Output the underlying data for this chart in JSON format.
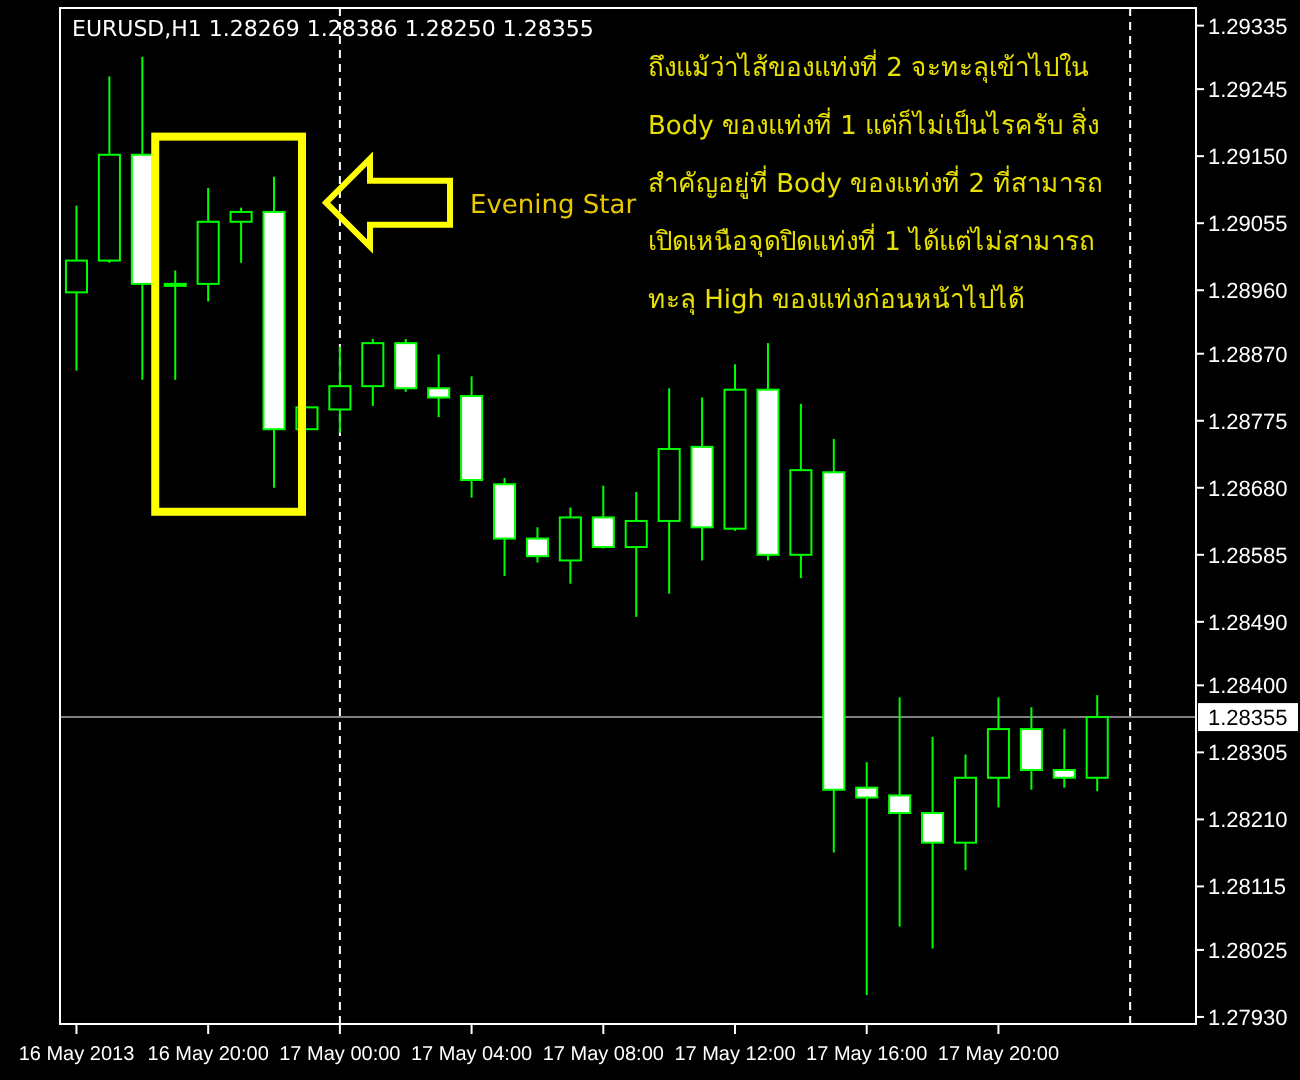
{
  "chart_data": {
    "type": "candlestick",
    "title": "EURUSD,H1 1.28269 1.28386 1.28250 1.28355",
    "x": [
      "2013-05-16T16:00",
      "2013-05-16T17:00",
      "2013-05-16T18:00",
      "2013-05-16T19:00",
      "2013-05-16T20:00",
      "2013-05-16T21:00",
      "2013-05-16T22:00",
      "2013-05-16T23:00",
      "2013-05-17T00:00",
      "2013-05-17T01:00",
      "2013-05-17T02:00",
      "2013-05-17T03:00",
      "2013-05-17T04:00",
      "2013-05-17T05:00",
      "2013-05-17T06:00",
      "2013-05-17T07:00",
      "2013-05-17T08:00",
      "2013-05-17T09:00",
      "2013-05-17T10:00",
      "2013-05-17T11:00",
      "2013-05-17T12:00",
      "2013-05-17T13:00",
      "2013-05-17T14:00",
      "2013-05-17T15:00",
      "2013-05-17T16:00",
      "2013-05-17T17:00",
      "2013-05-17T18:00",
      "2013-05-17T19:00",
      "2013-05-17T20:00",
      "2013-05-17T21:00",
      "2013-05-17T22:00",
      "2013-05-17T23:00"
    ],
    "ohlc": [
      [
        1.28957,
        1.2908,
        1.28846,
        1.29002
      ],
      [
        1.29002,
        1.29263,
        1.28999,
        1.29152
      ],
      [
        1.29152,
        1.29291,
        1.28833,
        1.28969
      ],
      [
        1.28969,
        1.28988,
        1.28833,
        1.28969
      ],
      [
        1.28969,
        1.29105,
        1.28944,
        1.29057
      ],
      [
        1.29057,
        1.29077,
        1.28999,
        1.29071
      ],
      [
        1.29071,
        1.29121,
        1.2868,
        1.28763
      ],
      [
        1.28763,
        1.28794,
        1.28763,
        1.28794
      ],
      [
        1.28791,
        1.2888,
        1.28758,
        1.28824
      ],
      [
        1.28824,
        1.28891,
        1.28796,
        1.28885
      ],
      [
        1.28885,
        1.28891,
        1.28816,
        1.28821
      ],
      [
        1.28821,
        1.28869,
        1.2878,
        1.28808
      ],
      [
        1.2881,
        1.28838,
        1.28666,
        1.28691
      ],
      [
        1.28685,
        1.28694,
        1.28555,
        1.28608
      ],
      [
        1.28608,
        1.28624,
        1.28574,
        1.28583
      ],
      [
        1.28577,
        1.28652,
        1.28544,
        1.28638
      ],
      [
        1.28638,
        1.28683,
        1.28594,
        1.28596
      ],
      [
        1.28596,
        1.28674,
        1.28497,
        1.28633
      ],
      [
        1.28633,
        1.28821,
        1.2853,
        1.28735
      ],
      [
        1.28738,
        1.28808,
        1.28577,
        1.28624
      ],
      [
        1.28622,
        1.28855,
        1.28619,
        1.28819
      ],
      [
        1.28819,
        1.28885,
        1.28577,
        1.28585
      ],
      [
        1.28585,
        1.28799,
        1.28552,
        1.28705
      ],
      [
        1.28702,
        1.28749,
        1.28163,
        1.28252
      ],
      [
        1.28255,
        1.28291,
        1.27961,
        1.28241
      ],
      [
        1.28244,
        1.28383,
        1.28058,
        1.28219
      ],
      [
        1.28219,
        1.28327,
        1.28027,
        1.28177
      ],
      [
        1.28177,
        1.28302,
        1.28138,
        1.28269
      ],
      [
        1.28269,
        1.28383,
        1.28227,
        1.28338
      ],
      [
        1.28338,
        1.28369,
        1.28252,
        1.2828
      ],
      [
        1.2828,
        1.28338,
        1.28255,
        1.28269
      ],
      [
        1.28269,
        1.28386,
        1.2825,
        1.28355
      ]
    ],
    "xlim": [
      "2013-05-16T15:30",
      "2013-05-18T02:00"
    ],
    "xticks": [
      {
        "value": "2013-05-16T16:00",
        "label": "16 May 2013"
      },
      {
        "value": "2013-05-16T20:00",
        "label": "16 May 20:00"
      },
      {
        "value": "2013-05-17T00:00",
        "label": "17 May 00:00"
      },
      {
        "value": "2013-05-17T04:00",
        "label": "17 May 04:00"
      },
      {
        "value": "2013-05-17T08:00",
        "label": "17 May 08:00"
      },
      {
        "value": "2013-05-17T12:00",
        "label": "17 May 12:00"
      },
      {
        "value": "2013-05-17T16:00",
        "label": "17 May 16:00"
      },
      {
        "value": "2013-05-17T20:00",
        "label": "17 May 20:00"
      }
    ],
    "ylim": [
      1.2792,
      1.2936
    ],
    "yticks": [
      1.29335,
      1.29245,
      {
        "value": 1.2915,
        "label": "1.29150"
      },
      1.29055,
      {
        "value": 1.2896,
        "label": "1.28960"
      },
      {
        "value": 1.2887,
        "label": "1.28870"
      },
      1.28775,
      {
        "value": 1.2868,
        "label": "1.28680"
      },
      1.28585,
      {
        "value": 1.2849,
        "label": "1.28490"
      },
      {
        "value": 1.284,
        "label": "1.28400"
      },
      1.28305,
      {
        "value": 1.2821,
        "label": "1.28210"
      },
      1.28115,
      1.28025,
      {
        "value": 1.2793,
        "label": "1.27930"
      }
    ],
    "ref_lines": [
      {
        "axis": "x",
        "value": "2013-05-17T00:00",
        "label": null,
        "color": "#ffffff",
        "line_style": "dashed"
      },
      {
        "axis": "x",
        "value": "2013-05-18T00:00",
        "label": null,
        "color": "#ffffff",
        "line_style": "dashed"
      },
      {
        "axis": "y",
        "value": 1.28355,
        "label": "1.28355",
        "color": "#808080",
        "line_style": "solid"
      }
    ],
    "annotations": [
      "Evening Star",
      "ถึงแม้ว่าไส้ของแท่งที่ 2 จะทะลุเข้าไปใน",
      "Body ของแท่งที่ 1 แต่ก็ไม่เป็นไรครับ สิ่ง",
      "สำคัญอยู่ที่ Body ของแท่งที่ 2  ที่สามารถ",
      "เปิดเหนือจุดปิดแท่งที่ 1 ได้แต่ไม่สามารถ",
      "ทะลุ High ของแท่งก่อนหน้าไปได้"
    ],
    "grid": false
  }
}
